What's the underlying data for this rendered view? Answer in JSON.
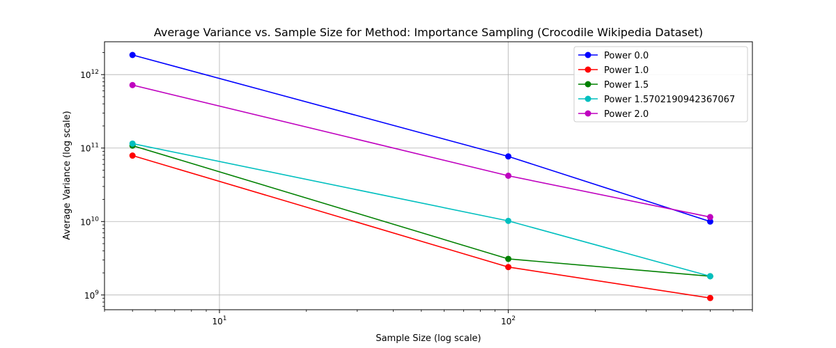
{
  "chart_data": {
    "type": "line",
    "title": "Average Variance vs. Sample Size for Method: Importance Sampling (Crocodile Wikipedia Dataset)",
    "xlabel": "Sample Size (log scale)",
    "ylabel": "Average Variance (log scale)",
    "xscale": "log",
    "yscale": "log",
    "xlim": [
      4,
      700
    ],
    "ylim": [
      630000000.0,
      2800000000000.0
    ],
    "grid": true,
    "legend_position": "top-right",
    "x": [
      5,
      100,
      500
    ],
    "x_ticks": [
      {
        "value": 10,
        "base": "10",
        "exp": "1"
      },
      {
        "value": 100,
        "base": "10",
        "exp": "2"
      }
    ],
    "y_ticks": [
      {
        "value": 1000000000.0,
        "base": "10",
        "exp": "9"
      },
      {
        "value": 10000000000.0,
        "base": "10",
        "exp": "10"
      },
      {
        "value": 100000000000.0,
        "base": "10",
        "exp": "11"
      },
      {
        "value": 1000000000000.0,
        "base": "10",
        "exp": "12"
      }
    ],
    "series": [
      {
        "name": "Power 0.0",
        "color": "#0000ff",
        "values": [
          1850000000000.0,
          77000000000.0,
          10000000000.0
        ]
      },
      {
        "name": "Power 1.0",
        "color": "#ff0000",
        "values": [
          79000000000.0,
          2400000000.0,
          910000000.0
        ]
      },
      {
        "name": "Power 1.5",
        "color": "#008000",
        "values": [
          108000000000.0,
          3100000000.0,
          1800000000.0
        ]
      },
      {
        "name": "Power 1.5702190942367067",
        "color": "#00bfbf",
        "values": [
          115000000000.0,
          10200000000.0,
          1800000000.0
        ]
      },
      {
        "name": "Power 2.0",
        "color": "#bf00bf",
        "values": [
          720000000000.0,
          42000000000.0,
          11500000000.0
        ]
      }
    ]
  }
}
